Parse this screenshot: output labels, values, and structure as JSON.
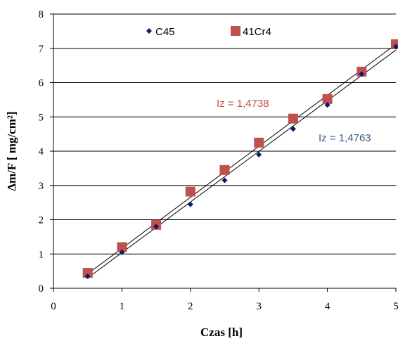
{
  "chart_data": {
    "type": "scatter",
    "title": "",
    "xlabel": "Czas [h]",
    "ylabel": "Δm/F [ mg/cm²]",
    "xlim": [
      0,
      5
    ],
    "ylim": [
      0,
      8
    ],
    "xticks": [
      "0",
      "1",
      "2",
      "3",
      "4",
      "5"
    ],
    "yticks": [
      "0",
      "1",
      "2",
      "3",
      "4",
      "5",
      "6",
      "7",
      "8"
    ],
    "grid": "horizontal",
    "legend_position": "top",
    "series": [
      {
        "name": "C45",
        "color": "#0a1a6e",
        "marker": "diamond",
        "x": [
          0.5,
          1.0,
          1.5,
          2.0,
          2.5,
          3.0,
          3.5,
          4.0,
          4.5,
          5.0
        ],
        "y": [
          0.35,
          1.05,
          1.8,
          2.45,
          3.15,
          3.9,
          4.65,
          5.35,
          6.25,
          7.05
        ],
        "trendline": {
          "x": [
            0.5,
            5.0
          ],
          "y": [
            0.3,
            6.95
          ]
        },
        "annotation": "Iz = 1,4763",
        "annotation_color": "#3b5a8a"
      },
      {
        "name": "41Cr4",
        "color": "#c0504d",
        "marker": "square",
        "x": [
          0.5,
          1.0,
          1.5,
          2.0,
          2.5,
          3.0,
          3.5,
          4.0,
          4.5,
          5.0
        ],
        "y": [
          0.45,
          1.2,
          1.85,
          2.82,
          3.45,
          4.25,
          4.95,
          5.52,
          6.32,
          7.12
        ],
        "trendline": {
          "x": [
            0.5,
            5.0
          ],
          "y": [
            0.42,
            7.12
          ]
        },
        "annotation": "Iz = 1,4738",
        "annotation_color": "#c0504d"
      }
    ]
  }
}
